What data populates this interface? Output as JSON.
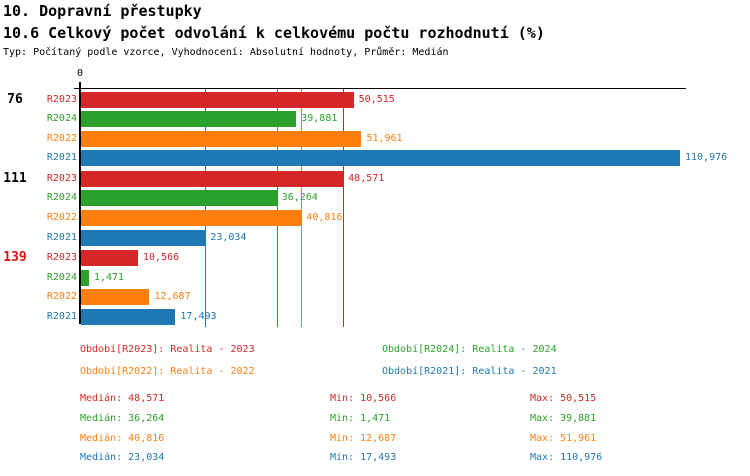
{
  "header": {
    "title": "10. Dopravní přestupky",
    "subtitle": "10.6 Celkový počet odvolání k celkovému počtu rozhodnutí (%)",
    "meta": "Typ: Počítaný podle vzorce, Vyhodnocení: Absolutní hodnoty, Průměr: Medián"
  },
  "colors": {
    "R2023": "#d62728",
    "R2024": "#2ca02c",
    "R2022": "#ff7f0e",
    "R2021": "#1f77b4",
    "axis": "#000000",
    "group_label_default": "#000000",
    "group_label_highlight": "#e01010"
  },
  "chart_data": {
    "type": "bar",
    "orientation": "horizontal",
    "value_axis": {
      "zero_label": "0",
      "min": 0,
      "max": 110976
    },
    "legend_position": "bottom",
    "grid": "median-lines-vertical",
    "series_order": [
      "R2023",
      "R2024",
      "R2022",
      "R2021"
    ],
    "groups": [
      {
        "label": "76",
        "label_highlight": false,
        "bars": [
          {
            "series": "R2023",
            "value": 50515,
            "value_label": "50,515"
          },
          {
            "series": "R2024",
            "value": 39881,
            "value_label": "39,881"
          },
          {
            "series": "R2022",
            "value": 51961,
            "value_label": "51,961"
          },
          {
            "series": "R2021",
            "value": 110976,
            "value_label": "110,976"
          }
        ]
      },
      {
        "label": "111",
        "label_highlight": false,
        "bars": [
          {
            "series": "R2023",
            "value": 48571,
            "value_label": "48,571"
          },
          {
            "series": "R2024",
            "value": 36264,
            "value_label": "36,264"
          },
          {
            "series": "R2022",
            "value": 40816,
            "value_label": "40,816"
          },
          {
            "series": "R2021",
            "value": 23034,
            "value_label": "23,034"
          }
        ]
      },
      {
        "label": "139",
        "label_highlight": true,
        "bars": [
          {
            "series": "R2023",
            "value": 10566,
            "value_label": "10,566"
          },
          {
            "series": "R2024",
            "value": 1471,
            "value_label": "1,471"
          },
          {
            "series": "R2022",
            "value": 12687,
            "value_label": "12,687"
          },
          {
            "series": "R2021",
            "value": 17493,
            "value_label": "17,493"
          }
        ]
      }
    ],
    "median_lines": [
      {
        "series": "R2021",
        "value": 23034
      },
      {
        "series": "R2024",
        "value": 36264
      },
      {
        "series": "R2022",
        "value": 40816
      },
      {
        "series": "R2023",
        "value": 48571
      }
    ]
  },
  "legend": {
    "rows": [
      [
        {
          "series": "R2023",
          "label": "Období[R2023]: Realita - 2023"
        },
        {
          "series": "R2024",
          "label": "Období[R2024]: Realita - 2024"
        }
      ],
      [
        {
          "series": "R2022",
          "label": "Období[R2022]: Realita - 2022"
        },
        {
          "series": "R2021",
          "label": "Období[R2021]: Realita - 2021"
        }
      ]
    ]
  },
  "stats": {
    "labels": {
      "median": "Medián:",
      "min": "Min:",
      "max": "Max:"
    },
    "rows": [
      {
        "series": "R2023",
        "median": "48,571",
        "min": "10,566",
        "max": "50,515"
      },
      {
        "series": "R2024",
        "median": "36,264",
        "min": "1,471",
        "max": "39,881"
      },
      {
        "series": "R2022",
        "median": "40,816",
        "min": "12,687",
        "max": "51,961"
      },
      {
        "series": "R2021",
        "median": "23,034",
        "min": "17,493",
        "max": "110,976"
      }
    ]
  }
}
